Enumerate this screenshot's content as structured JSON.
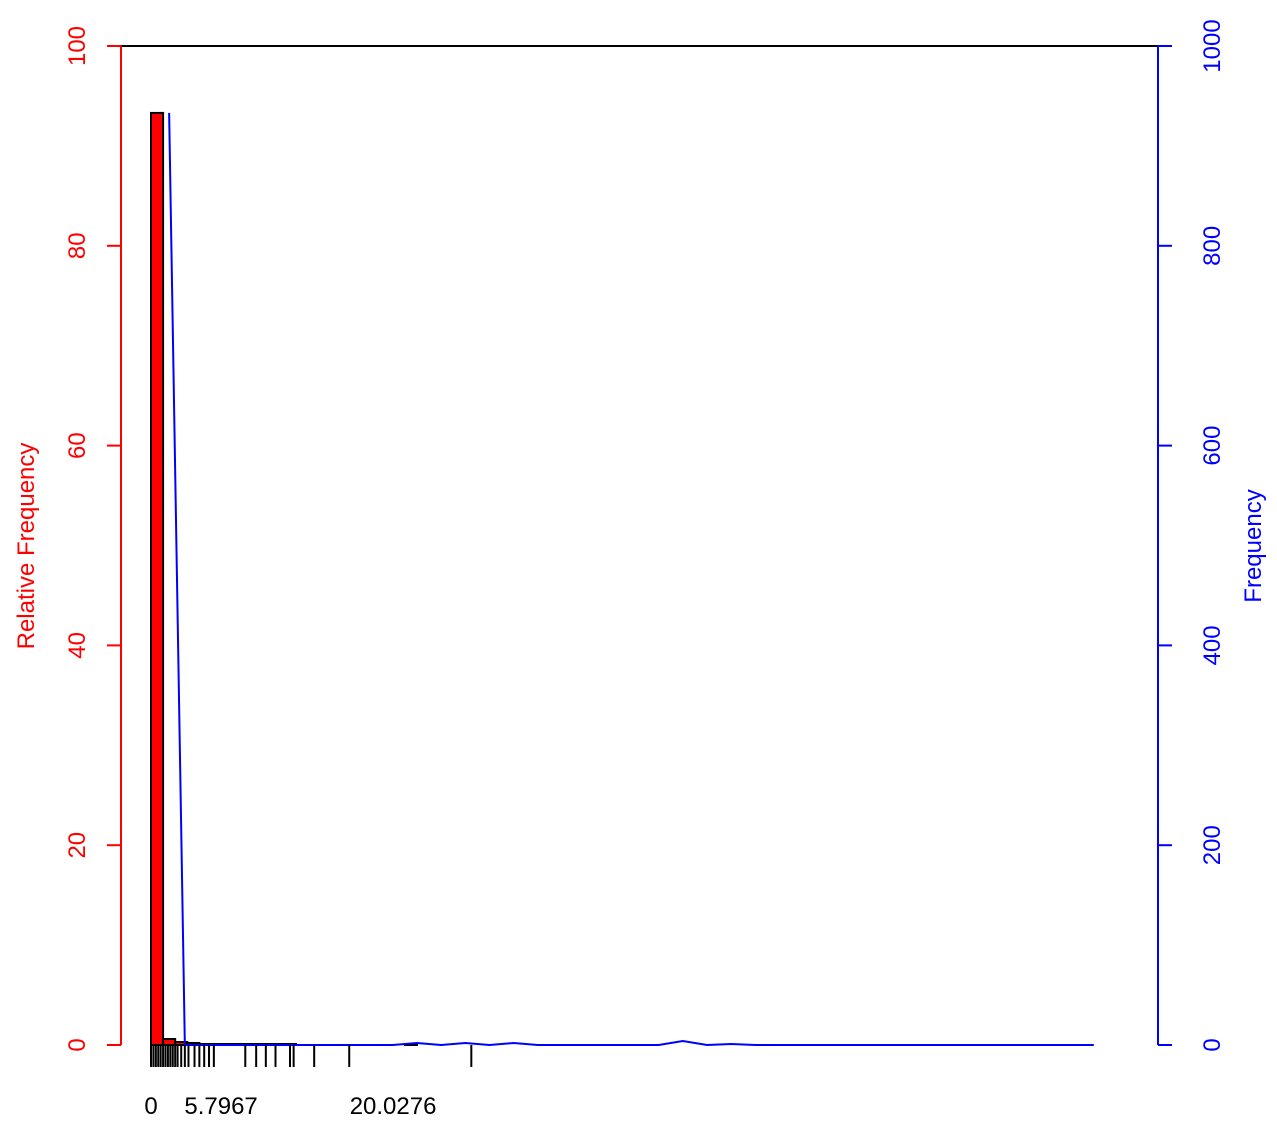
{
  "chart_data": {
    "type": "bar",
    "title": "",
    "xlabel": "",
    "ylabel_left": "Relative Frequency",
    "ylabel_right": "Frequency",
    "ylim_left": [
      0,
      100
    ],
    "ylim_right": [
      0,
      1000
    ],
    "xlim": [
      -1,
      80
    ],
    "left_ticks": [
      "0",
      "20",
      "40",
      "60",
      "80",
      "100"
    ],
    "right_ticks": [
      "0",
      "200",
      "400",
      "600",
      "800",
      "1000"
    ],
    "x_tick_labels": [
      {
        "value": 0,
        "label": "0"
      },
      {
        "value": 5.7967,
        "label": "5.7967"
      },
      {
        "value": 20.0276,
        "label": "20.0276"
      }
    ],
    "bars": {
      "color": "#ff0000",
      "bin_edges": [
        0,
        1,
        2,
        3,
        4,
        5,
        6,
        7,
        8,
        9,
        10,
        11,
        12,
        13,
        14,
        15,
        16,
        17,
        18,
        19,
        20,
        21,
        22,
        23,
        24,
        25,
        26,
        27,
        28,
        29,
        30,
        31,
        32,
        33,
        34,
        35,
        36,
        37,
        38,
        39,
        40,
        41,
        42,
        43,
        44,
        45,
        46,
        47,
        48,
        49,
        50,
        51,
        52,
        53,
        54,
        55,
        56,
        57,
        58,
        59,
        60,
        61,
        62,
        63,
        64,
        65,
        66,
        67,
        68,
        69,
        70,
        71,
        72,
        73,
        74,
        75,
        76,
        77,
        78,
        79,
        80
      ],
      "relative_frequency": [
        93.3,
        0.6,
        0.3,
        0.2,
        0.1,
        0.1,
        0.1,
        0.1,
        0.1,
        0.1,
        0.1,
        0.1,
        0,
        0,
        0,
        0,
        0,
        0,
        0,
        0,
        0,
        0.1,
        0,
        0,
        0,
        0,
        0,
        0,
        0,
        0,
        0,
        0,
        0,
        0,
        0,
        0,
        0,
        0,
        0,
        0,
        0,
        0,
        0,
        0,
        0,
        0,
        0,
        0,
        0,
        0,
        0,
        0,
        0,
        0,
        0,
        0,
        0,
        0,
        0,
        0,
        0,
        0,
        0,
        0,
        0,
        0,
        0,
        0,
        0,
        0,
        0,
        0,
        0,
        0,
        0,
        0,
        0,
        0,
        0,
        0
      ]
    },
    "frequency_line": {
      "color": "#0000ff",
      "x": [
        1.5,
        2.8,
        4.5,
        8,
        12,
        16,
        20,
        22,
        24,
        26,
        28,
        30,
        32,
        34,
        36,
        38,
        40,
        42,
        44,
        46,
        48,
        50,
        52,
        54,
        56,
        58,
        60,
        62,
        64,
        66,
        68,
        70,
        72,
        74,
        76,
        78
      ],
      "y": [
        933,
        0,
        0,
        0,
        0,
        0,
        0,
        2,
        0,
        2,
        0,
        2,
        0,
        0,
        0,
        0,
        0,
        0,
        4,
        0,
        1,
        0,
        0,
        0,
        0,
        0,
        0,
        0,
        0,
        0,
        0,
        0,
        0,
        0,
        0,
        0
      ]
    },
    "rug": {
      "color": "#000000",
      "x": [
        0,
        0.2,
        0.4,
        0.6,
        0.8,
        1.0,
        1.2,
        1.4,
        1.6,
        1.8,
        2.0,
        2.2,
        2.5,
        2.8,
        3.1,
        3.6,
        4.0,
        4.4,
        4.8,
        5.2,
        7.8,
        8.7,
        9.5,
        10.3,
        11.5,
        11.8,
        13.5,
        16.4,
        26.5
      ]
    },
    "grid": false,
    "legend": "none"
  }
}
